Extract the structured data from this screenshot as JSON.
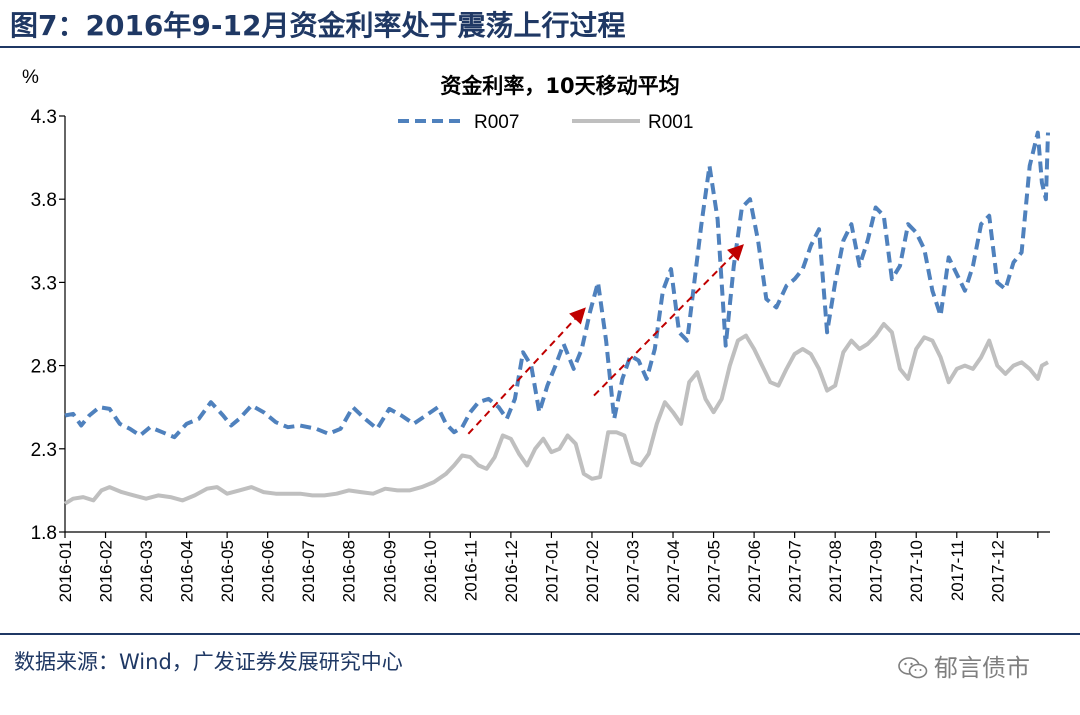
{
  "figure": {
    "title": "图7：2016年9-12月资金利率处于震荡上行过程",
    "source": "数据来源：Wind，广发证券发展研究中心",
    "watermark": "郁言债市"
  },
  "chart_data": {
    "type": "line",
    "title": "资金利率，10天移动平均",
    "ylabel": "%",
    "xlabel": "",
    "ylim": [
      1.8,
      4.3
    ],
    "yticks": [
      1.8,
      2.3,
      2.8,
      3.3,
      3.8,
      4.3
    ],
    "yticks_labels": [
      "1.8",
      "2.3",
      "2.8",
      "3.3",
      "3.8",
      "4.3"
    ],
    "xlim": [
      0,
      24.3
    ],
    "xticks_labels": [
      "2016-01",
      "2016-02",
      "2016-03",
      "2016-04",
      "2016-05",
      "2016-06",
      "2016-07",
      "2016-08",
      "2016-09",
      "2016-10",
      "2016-11",
      "2016-12",
      "2017-01",
      "2017-02",
      "2017-03",
      "2017-04",
      "2017-05",
      "2017-06",
      "2017-07",
      "2017-08",
      "2017-09",
      "2017-10",
      "2017-11",
      "2017-12"
    ],
    "grid": false,
    "legend_position": "top-center",
    "series": [
      {
        "name": "R007",
        "style": "dashed",
        "color": "#4f81bd",
        "x": [
          0.0,
          0.2,
          0.4,
          0.6,
          0.85,
          1.1,
          1.35,
          1.6,
          1.85,
          2.1,
          2.4,
          2.7,
          3.0,
          3.3,
          3.6,
          3.9,
          4.1,
          4.3,
          4.6,
          4.9,
          5.2,
          5.5,
          5.8,
          6.2,
          6.5,
          6.8,
          7.1,
          7.4,
          7.7,
          8.0,
          8.3,
          8.6,
          8.9,
          9.2,
          9.4,
          9.6,
          9.8,
          10.0,
          10.2,
          10.45,
          10.7,
          10.9,
          11.1,
          11.3,
          11.5,
          11.7,
          11.9,
          12.1,
          12.3,
          12.55,
          12.75,
          12.95,
          13.15,
          13.35,
          13.55,
          13.75,
          13.95,
          14.15,
          14.35,
          14.55,
          14.75,
          14.95,
          15.15,
          15.35,
          15.5,
          15.7,
          15.9,
          16.1,
          16.3,
          16.5,
          16.7,
          16.9,
          17.1,
          17.3,
          17.55,
          17.8,
          18.0,
          18.2,
          18.4,
          18.6,
          18.8,
          19.0,
          19.2,
          19.4,
          19.6,
          19.8,
          20.0,
          20.2,
          20.4,
          20.6,
          20.8,
          21.0,
          21.2,
          21.4,
          21.6,
          21.8,
          22.0,
          22.2,
          22.4,
          22.6,
          22.8,
          23.0,
          23.2,
          23.4,
          23.6,
          23.8,
          24.0,
          24.1,
          24.2,
          24.25
        ],
        "values": [
          2.5,
          2.51,
          2.44,
          2.5,
          2.55,
          2.54,
          2.45,
          2.42,
          2.38,
          2.43,
          2.4,
          2.37,
          2.45,
          2.48,
          2.58,
          2.5,
          2.44,
          2.48,
          2.56,
          2.52,
          2.46,
          2.43,
          2.44,
          2.42,
          2.39,
          2.42,
          2.55,
          2.48,
          2.42,
          2.54,
          2.5,
          2.45,
          2.5,
          2.55,
          2.45,
          2.4,
          2.43,
          2.52,
          2.58,
          2.6,
          2.55,
          2.48,
          2.6,
          2.88,
          2.8,
          2.52,
          2.68,
          2.8,
          2.93,
          2.78,
          2.9,
          3.12,
          3.3,
          2.95,
          2.48,
          2.72,
          2.86,
          2.83,
          2.72,
          2.9,
          3.25,
          3.38,
          3.0,
          2.95,
          3.25,
          3.65,
          4.0,
          3.68,
          2.92,
          3.4,
          3.75,
          3.8,
          3.55,
          3.2,
          3.15,
          3.28,
          3.32,
          3.38,
          3.52,
          3.62,
          3.0,
          3.3,
          3.55,
          3.65,
          3.4,
          3.55,
          3.75,
          3.7,
          3.32,
          3.4,
          3.65,
          3.6,
          3.5,
          3.25,
          3.1,
          3.45,
          3.35,
          3.25,
          3.4,
          3.65,
          3.7,
          3.3,
          3.26,
          3.42,
          3.48,
          4.0,
          4.2,
          3.9,
          3.8,
          4.2
        ]
      },
      {
        "name": "R001",
        "style": "solid",
        "color": "#bfbfbf",
        "x": [
          0.0,
          0.2,
          0.45,
          0.7,
          0.9,
          1.1,
          1.4,
          1.7,
          2.0,
          2.3,
          2.6,
          2.9,
          3.2,
          3.5,
          3.75,
          4.0,
          4.3,
          4.6,
          4.9,
          5.2,
          5.5,
          5.8,
          6.1,
          6.4,
          6.7,
          7.0,
          7.3,
          7.6,
          7.9,
          8.2,
          8.5,
          8.8,
          9.1,
          9.4,
          9.6,
          9.8,
          10.0,
          10.2,
          10.4,
          10.6,
          10.8,
          11.0,
          11.2,
          11.4,
          11.6,
          11.8,
          12.0,
          12.2,
          12.4,
          12.6,
          12.8,
          13.0,
          13.2,
          13.4,
          13.6,
          13.8,
          14.0,
          14.2,
          14.4,
          14.6,
          14.8,
          15.0,
          15.2,
          15.4,
          15.6,
          15.8,
          16.0,
          16.2,
          16.4,
          16.6,
          16.8,
          17.0,
          17.2,
          17.4,
          17.6,
          17.8,
          18.0,
          18.2,
          18.4,
          18.6,
          18.8,
          19.0,
          19.2,
          19.4,
          19.6,
          19.8,
          20.0,
          20.2,
          20.4,
          20.6,
          20.8,
          21.0,
          21.2,
          21.4,
          21.6,
          21.8,
          22.0,
          22.2,
          22.4,
          22.6,
          22.8,
          23.0,
          23.2,
          23.4,
          23.6,
          23.8,
          24.0,
          24.1,
          24.25
        ],
        "values": [
          1.97,
          2.0,
          2.01,
          1.99,
          2.05,
          2.07,
          2.04,
          2.02,
          2.0,
          2.02,
          2.01,
          1.99,
          2.02,
          2.06,
          2.07,
          2.03,
          2.05,
          2.07,
          2.04,
          2.03,
          2.03,
          2.03,
          2.02,
          2.02,
          2.03,
          2.05,
          2.04,
          2.03,
          2.06,
          2.05,
          2.05,
          2.07,
          2.1,
          2.15,
          2.2,
          2.26,
          2.25,
          2.2,
          2.18,
          2.25,
          2.38,
          2.36,
          2.27,
          2.2,
          2.3,
          2.36,
          2.28,
          2.3,
          2.38,
          2.33,
          2.15,
          2.12,
          2.13,
          2.4,
          2.4,
          2.38,
          2.22,
          2.2,
          2.27,
          2.45,
          2.58,
          2.52,
          2.45,
          2.7,
          2.76,
          2.6,
          2.52,
          2.6,
          2.8,
          2.95,
          2.98,
          2.9,
          2.8,
          2.7,
          2.68,
          2.78,
          2.87,
          2.9,
          2.87,
          2.78,
          2.65,
          2.68,
          2.88,
          2.95,
          2.9,
          2.93,
          2.98,
          3.05,
          3.0,
          2.78,
          2.72,
          2.9,
          2.97,
          2.95,
          2.85,
          2.7,
          2.78,
          2.8,
          2.78,
          2.85,
          2.95,
          2.8,
          2.75,
          2.8,
          2.82,
          2.78,
          2.72,
          2.8,
          2.82
        ]
      }
    ],
    "annotations": [
      {
        "type": "arrow",
        "style": "dashed",
        "color": "#c00000",
        "from": {
          "x": 9.95,
          "y": 2.39
        },
        "to": {
          "x": 12.85,
          "y": 3.15
        }
      },
      {
        "type": "arrow",
        "style": "dashed",
        "color": "#c00000",
        "from": {
          "x": 13.05,
          "y": 2.62
        },
        "to": {
          "x": 16.75,
          "y": 3.53
        }
      }
    ]
  }
}
